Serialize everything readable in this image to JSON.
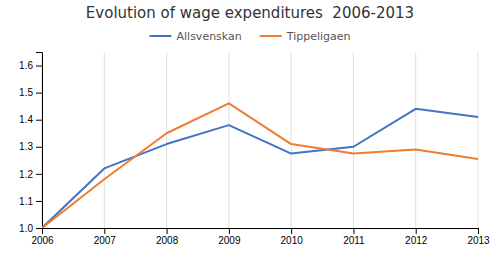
{
  "chart_data": {
    "type": "line",
    "title": "Evolution of wage expenditures  2006-2013",
    "x": [
      2006,
      2007,
      2008,
      2009,
      2010,
      2011,
      2012,
      2013
    ],
    "series": [
      {
        "name": "Allsvenskan",
        "color": "#4472C4",
        "values": [
          1.0,
          1.22,
          1.31,
          1.38,
          1.275,
          1.3,
          1.44,
          1.41
        ]
      },
      {
        "name": "Tippeligaen",
        "color": "#ED7D31",
        "values": [
          1.0,
          1.18,
          1.35,
          1.46,
          1.31,
          1.275,
          1.29,
          1.255
        ]
      }
    ],
    "xlim": [
      2006,
      2013
    ],
    "xticks": [
      2006,
      2007,
      2008,
      2009,
      2010,
      2011,
      2012,
      2013
    ],
    "ylim": [
      1.0,
      1.65
    ],
    "yticks": [
      {
        "value": 1.0,
        "label": "1.0"
      },
      1.1,
      1.2,
      1.3,
      1.4,
      1.5,
      1.6
    ],
    "grid": "x",
    "legend": "top"
  }
}
